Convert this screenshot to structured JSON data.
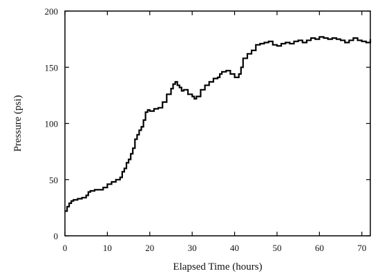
{
  "chart_data": {
    "type": "line",
    "title": "",
    "xlabel": "Elapsed Time (hours)",
    "ylabel": "Pressure (psi)",
    "xlim": [
      0,
      72
    ],
    "ylim": [
      0,
      200
    ],
    "xticks": [
      0,
      10,
      20,
      30,
      40,
      50,
      60,
      70
    ],
    "yticks": [
      0,
      50,
      100,
      150,
      200
    ],
    "grid": false,
    "line_color": "#000000",
    "step": true,
    "series": [
      {
        "x": [
          0,
          0.5,
          1,
          1.5,
          2,
          3,
          4,
          5,
          5.5,
          6,
          7,
          8,
          9,
          10,
          11,
          12,
          13,
          13.5,
          14,
          14.5,
          15,
          15.5,
          16,
          16.5,
          17,
          17.5,
          18,
          18.5,
          19,
          19.5,
          20,
          21,
          22,
          23,
          24,
          25,
          25.5,
          26,
          26.5,
          27,
          27.5,
          28,
          29,
          30,
          30.5,
          31,
          32,
          33,
          34,
          35,
          36,
          36.5,
          37,
          38,
          39,
          40,
          41,
          41.5,
          42,
          43,
          44,
          45,
          46,
          47,
          48,
          49,
          50,
          51,
          52,
          53,
          54,
          55,
          56,
          57,
          58,
          59,
          60,
          61,
          62,
          63,
          64,
          65,
          66,
          67,
          68,
          69,
          70,
          71,
          72
        ],
        "y": [
          22,
          26,
          29,
          31,
          32,
          33,
          34,
          36,
          39,
          40,
          41,
          41,
          43,
          46,
          48,
          50,
          52,
          57,
          60,
          65,
          68,
          73,
          78,
          86,
          90,
          94,
          97,
          103,
          110,
          112,
          111,
          113,
          114,
          119,
          126,
          131,
          135,
          137,
          134,
          132,
          129,
          130,
          126,
          124,
          122,
          124,
          130,
          134,
          137,
          140,
          141,
          144,
          146,
          147,
          144,
          141,
          144,
          150,
          158,
          162,
          165,
          170,
          171,
          172,
          173,
          170,
          169,
          171,
          172,
          171,
          173,
          174,
          172,
          174,
          176,
          175,
          177,
          176,
          175,
          176,
          175,
          174,
          172,
          174,
          176,
          174,
          173,
          172,
          175
        ]
      }
    ]
  }
}
